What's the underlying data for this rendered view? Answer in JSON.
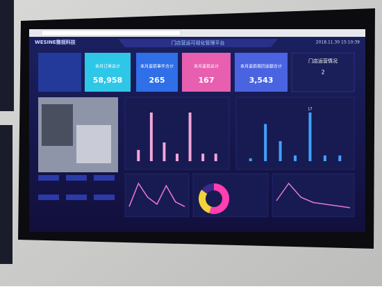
{
  "header": {
    "logo": "WESINE微视科技",
    "title": "门店营运可视化管理平台",
    "datetime": "2018.11.30 15:10:39"
  },
  "cards": [
    {
      "label": "本月订单总计",
      "value": "58,958",
      "color": "#2fc7e8"
    },
    {
      "label": "本月盗损事件合计",
      "value": "265",
      "color": "#2f6fe8"
    },
    {
      "label": "本月盗损总计",
      "value": "167",
      "color": "#e85fb0"
    },
    {
      "label": "本月盗损挽回金额合计",
      "value": "3,543",
      "color": "#4a63e0"
    }
  ],
  "status": {
    "title": "门店运营情况",
    "value": "2"
  },
  "chart_data": [
    {
      "type": "bar",
      "color": "#f2a6d8",
      "values": [
        3,
        13,
        5,
        2,
        13,
        2,
        2
      ]
    },
    {
      "type": "bar",
      "color": "#3fa2ff",
      "values": [
        1,
        13,
        7,
        2,
        17,
        2,
        2
      ]
    },
    {
      "type": "line",
      "color": "#f07ad0",
      "values": [
        10,
        60,
        30,
        15,
        55,
        20,
        10
      ]
    },
    {
      "type": "pie",
      "colors": [
        "#ff3fb0",
        "#f2d23a",
        "#3a2a8a"
      ],
      "values": [
        55,
        30,
        15
      ]
    },
    {
      "type": "line",
      "color": "#e07ad8",
      "values": [
        30,
        80,
        40,
        25,
        20,
        15,
        10
      ]
    }
  ]
}
